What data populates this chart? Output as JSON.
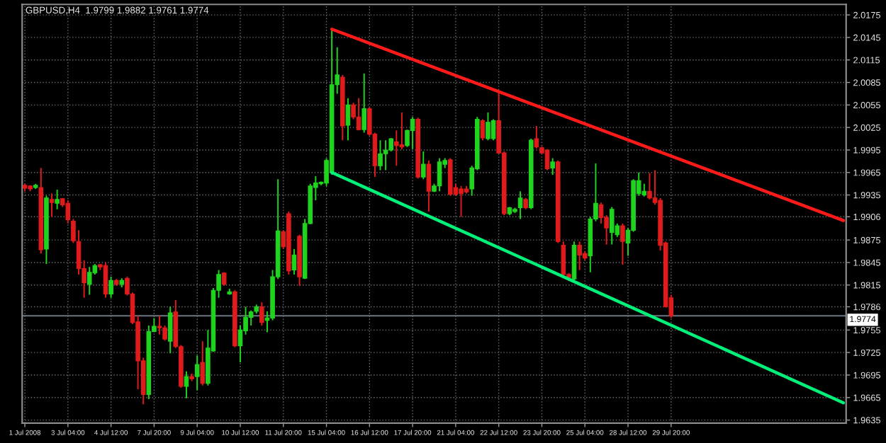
{
  "chart_data": {
    "type": "candlestick",
    "title": "GBPUSD,H4  1.9799 1.9882 1.9761 1.9774",
    "categories": [
      "1 Jul 2008",
      null,
      null,
      null,
      null,
      null,
      null,
      null,
      "3 Jul 04:00",
      null,
      null,
      null,
      null,
      null,
      null,
      null,
      "4 Jul 12:00",
      null,
      null,
      null,
      null,
      null,
      null,
      null,
      "7 Jul 20:00",
      null,
      null,
      null,
      null,
      null,
      null,
      null,
      "9 Jul 04:00",
      null,
      null,
      null,
      null,
      null,
      null,
      null,
      "10 Jul 12:00",
      null,
      null,
      null,
      null,
      null,
      null,
      null,
      "11 Jul 20:00",
      null,
      null,
      null,
      null,
      null,
      null,
      null,
      "15 Jul 04:00",
      null,
      null,
      null,
      null,
      null,
      null,
      null,
      "16 Jul 12:00",
      null,
      null,
      null,
      null,
      null,
      null,
      null,
      "17 Jul 20:00",
      null,
      null,
      null,
      null,
      null,
      null,
      null,
      "21 Jul 04:00",
      null,
      null,
      null,
      null,
      null,
      null,
      null,
      "22 Jul 12:00",
      null,
      null,
      null,
      null,
      null,
      null,
      null,
      "23 Jul 20:00",
      null,
      null,
      null,
      null,
      null,
      null,
      null,
      "25 Jul 04:00",
      null,
      null,
      null,
      null,
      null,
      null,
      null,
      "28 Jul 12:00",
      null,
      null,
      null,
      null,
      null,
      null,
      null,
      "29 Jul 20:00",
      null,
      null,
      null,
      null,
      null,
      null,
      null,
      null,
      null,
      null,
      null,
      null,
      null,
      null,
      null,
      null,
      null,
      null,
      null,
      null,
      null,
      null,
      null,
      null,
      null,
      null,
      null,
      null,
      null,
      null,
      null,
      null
    ],
    "ohlc": [
      [
        1.9948,
        1.995,
        1.994,
        1.9944
      ],
      [
        1.9947,
        1.9948,
        1.994,
        1.9943
      ],
      [
        1.9945,
        1.995,
        1.9943,
        1.9948
      ],
      [
        1.9945,
        1.9971,
        1.9857,
        1.9862
      ],
      [
        1.9863,
        1.9934,
        1.9843,
        1.9931
      ],
      [
        1.9929,
        1.9937,
        1.9906,
        1.9925
      ],
      [
        1.9924,
        1.9942,
        1.9916,
        1.9929
      ],
      [
        1.993,
        1.9931,
        1.9919,
        1.9922
      ],
      [
        1.9924,
        1.9928,
        1.9897,
        1.9902
      ],
      [
        1.99,
        1.9903,
        1.9871,
        1.9874
      ],
      [
        1.9873,
        1.9888,
        1.9829,
        1.9837
      ],
      [
        1.9837,
        1.9848,
        1.9798,
        1.9818
      ],
      [
        1.9816,
        1.9839,
        1.9802,
        1.9832
      ],
      [
        1.9831,
        1.9843,
        1.9829,
        1.9841
      ],
      [
        1.9842,
        1.9843,
        1.9835,
        1.9839
      ],
      [
        1.9841,
        1.9845,
        1.9798,
        1.9803
      ],
      [
        1.9803,
        1.9826,
        1.9798,
        1.9821
      ],
      [
        1.9821,
        1.9823,
        1.9814,
        1.9816
      ],
      [
        1.9816,
        1.9824,
        1.9812,
        1.9821
      ],
      [
        1.9824,
        1.9826,
        1.9801,
        1.9803
      ],
      [
        1.9803,
        1.9805,
        1.9763,
        1.9765
      ],
      [
        1.9766,
        1.9774,
        1.9676,
        1.9714
      ],
      [
        1.9714,
        1.9718,
        1.9656,
        1.9669
      ],
      [
        1.9669,
        1.9761,
        1.9663,
        1.9753
      ],
      [
        1.9753,
        1.9771,
        1.9752,
        1.976
      ],
      [
        1.976,
        1.9774,
        1.9749,
        1.9758
      ],
      [
        1.9758,
        1.9761,
        1.9741,
        1.9743
      ],
      [
        1.974,
        1.9786,
        1.9724,
        1.9778
      ],
      [
        1.9779,
        1.9795,
        1.9731,
        1.9733
      ],
      [
        1.9733,
        1.9735,
        1.9678,
        1.968
      ],
      [
        1.968,
        1.97,
        1.9664,
        1.9693
      ],
      [
        1.9693,
        1.9697,
        1.9687,
        1.969
      ],
      [
        1.9693,
        1.9721,
        1.9675,
        1.9709
      ],
      [
        1.9712,
        1.974,
        1.9681,
        1.9684
      ],
      [
        1.9684,
        1.9755,
        1.9681,
        1.9731
      ],
      [
        1.9727,
        1.9811,
        1.9726,
        1.9808
      ],
      [
        1.9808,
        1.9835,
        1.9798,
        1.9829
      ],
      [
        1.9831,
        1.9832,
        1.9814,
        1.9816
      ],
      [
        1.9803,
        1.981,
        1.9802,
        1.9806
      ],
      [
        1.9806,
        1.9808,
        1.9732,
        1.9734
      ],
      [
        1.9734,
        1.9761,
        1.9712,
        1.9755
      ],
      [
        1.9754,
        1.9786,
        1.9749,
        1.9772
      ],
      [
        1.9772,
        1.9781,
        1.9761,
        1.9779
      ],
      [
        1.978,
        1.9789,
        1.9777,
        1.9786
      ],
      [
        1.9786,
        1.9792,
        1.9761,
        1.9765
      ],
      [
        1.9768,
        1.978,
        1.9752,
        1.9771
      ],
      [
        1.9771,
        1.9835,
        1.9768,
        1.9826
      ],
      [
        1.9826,
        1.9956,
        1.9823,
        1.9887
      ],
      [
        1.9886,
        1.9888,
        1.9863,
        1.9866
      ],
      [
        1.991,
        1.9913,
        1.9829,
        1.9834
      ],
      [
        1.9835,
        1.9863,
        1.9829,
        1.9855
      ],
      [
        1.988,
        1.9882,
        1.9814,
        1.9826
      ],
      [
        1.9824,
        1.9903,
        1.9823,
        1.9897
      ],
      [
        1.9897,
        1.995,
        1.9896,
        1.9947
      ],
      [
        1.9945,
        1.996,
        1.9928,
        1.9951
      ],
      [
        1.995,
        1.9953,
        1.9948,
        1.9952
      ],
      [
        1.9951,
        1.9984,
        1.9947,
        1.9981
      ],
      [
        1.9965,
        2.0156,
        1.9962,
        2.0082
      ],
      [
        2.0082,
        2.0132,
        2.007,
        2.0095
      ],
      [
        2.0092,
        2.0095,
        2.0008,
        2.0027
      ],
      [
        2.0028,
        2.0064,
        2.0008,
        2.0055
      ],
      [
        2.0055,
        2.0058,
        2.0036,
        2.0039
      ],
      [
        2.0039,
        2.0064,
        2.0021,
        2.0022
      ],
      [
        2.0022,
        2.0097,
        2.0018,
        2.005
      ],
      [
        2.005,
        2.0052,
        2.0014,
        2.0016
      ],
      [
        2.0016,
        2.0018,
        1.9959,
        1.9974
      ],
      [
        1.9974,
        2.0008,
        1.9968,
        1.999
      ],
      [
        1.999,
        2.0008,
        1.9968,
        1.9995
      ],
      [
        1.9995,
        2.0011,
        1.9993,
        2.001
      ],
      [
        2.0006,
        2.0021,
        1.9974,
        2.0001
      ],
      [
        2.0002,
        2.0045,
        1.9996,
        1.9999
      ],
      [
        2.0001,
        2.0022,
        1.9999,
        2.0021
      ],
      [
        2.0021,
        2.0039,
        1.9996,
        2.0036
      ],
      [
        2.0036,
        2.0038,
        1.9957,
        1.9959
      ],
      [
        1.9959,
        1.9993,
        1.9956,
        1.9976
      ],
      [
        1.9976,
        1.9981,
        1.9913,
        1.994
      ],
      [
        1.994,
        1.995,
        1.9939,
        1.9947
      ],
      [
        1.9947,
        1.9984,
        1.994,
        1.9979
      ],
      [
        1.9976,
        1.9984,
        1.9971,
        1.9981
      ],
      [
        1.9982,
        1.9984,
        1.9934,
        1.9936
      ],
      [
        1.9945,
        1.995,
        1.9934,
        1.9936
      ],
      [
        1.9943,
        1.9947,
        1.9906,
        1.9937
      ],
      [
        1.9943,
        1.9947,
        1.9937,
        1.9939
      ],
      [
        1.9943,
        1.9974,
        1.9934,
        1.9971
      ],
      [
        1.997,
        2.0039,
        1.9968,
        2.0036
      ],
      [
        2.0034,
        2.0036,
        2.0008,
        2.0011
      ],
      [
        2.001,
        2.0045,
        2.0008,
        2.0032
      ],
      [
        2.001,
        2.0036,
        2.0008,
        2.0034
      ],
      [
        2.0034,
        2.0073,
        1.999,
        1.9991
      ],
      [
        1.9991,
        1.9993,
        1.9908,
        1.991
      ],
      [
        1.991,
        1.9919,
        1.9908,
        1.9918
      ],
      [
        1.9913,
        1.9918,
        1.9911,
        1.9916
      ],
      [
        1.9918,
        1.994,
        1.9903,
        1.9931
      ],
      [
        1.9929,
        1.9931,
        1.9916,
        1.9918
      ],
      [
        1.9918,
        2.001,
        1.9916,
        2.0008
      ],
      [
        2.001,
        2.0027,
        1.9997,
        1.9999
      ],
      [
        1.9998,
        2.0,
        1.999,
        1.9991
      ],
      [
        1.9995,
        1.9996,
        1.9968,
        1.997
      ],
      [
        1.9971,
        1.9984,
        1.9962,
        1.9979
      ],
      [
        1.9979,
        1.9981,
        1.9871,
        1.9873
      ],
      [
        1.9868,
        1.9873,
        1.9826,
        1.9829
      ],
      [
        1.9829,
        1.9831,
        1.982,
        1.9825
      ],
      [
        1.9823,
        1.9873,
        1.982,
        1.9868
      ],
      [
        1.9868,
        1.9873,
        1.9835,
        1.9855
      ],
      [
        1.9857,
        1.986,
        1.9848,
        1.9851
      ],
      [
        1.9854,
        1.9906,
        1.9832,
        1.9903
      ],
      [
        1.9903,
        1.9977,
        1.99,
        1.9924
      ],
      [
        1.9922,
        1.9925,
        1.9897,
        1.9905
      ],
      [
        1.9905,
        1.9908,
        1.9869,
        1.9891
      ],
      [
        1.9885,
        1.9919,
        1.9869,
        1.9916
      ],
      [
        1.9882,
        1.9897,
        1.9879,
        1.9894
      ],
      [
        1.9894,
        1.9897,
        1.9842,
        1.9873
      ],
      [
        1.9871,
        1.9891,
        1.9854,
        1.9888
      ],
      [
        1.9888,
        1.9956,
        1.9886,
        1.9954
      ],
      [
        1.9937,
        1.9965,
        1.9934,
        1.9954
      ],
      [
        1.9935,
        1.995,
        1.9933,
        1.994
      ],
      [
        1.994,
        1.9964,
        1.9929,
        1.9931
      ],
      [
        1.9931,
        1.9968,
        1.9922,
        1.9925
      ],
      [
        1.9928,
        1.9931,
        1.9861,
        1.9868
      ],
      [
        1.9871,
        1.9873,
        1.9785,
        1.9786
      ],
      [
        1.9798,
        1.9802,
        1.9771,
        1.9774
      ],
      null,
      null,
      null,
      null,
      null,
      null,
      null,
      null,
      null,
      null,
      null,
      null,
      null,
      null,
      null,
      null,
      null,
      null,
      null,
      null,
      null,
      null,
      null,
      null,
      null,
      null,
      null,
      null,
      null,
      null,
      null,
      null
    ],
    "colors": [
      "#e01b1b",
      "#e01b1b",
      "#1fd41f",
      "#e01b1b",
      "#1fd41f",
      "#e01b1b",
      "#1fd41f",
      "#e01b1b",
      "#e01b1b",
      "#e01b1b",
      "#e01b1b",
      "#e01b1b",
      "#1fd41f",
      "#1fd41f",
      "#e01b1b",
      "#e01b1b",
      "#1fd41f",
      "#e01b1b",
      "#1fd41f",
      "#e01b1b",
      "#e01b1b",
      "#e01b1b",
      "#e01b1b",
      "#1fd41f",
      "#1fd41f",
      "#e01b1b",
      "#e01b1b",
      "#1fd41f",
      "#e01b1b",
      "#e01b1b",
      "#1fd41f",
      "#e01b1b",
      "#1fd41f",
      "#e01b1b",
      "#1fd41f",
      "#1fd41f",
      "#1fd41f",
      "#e01b1b",
      "#1fd41f",
      "#e01b1b",
      "#1fd41f",
      "#1fd41f",
      "#1fd41f",
      "#1fd41f",
      "#e01b1b",
      "#1fd41f",
      "#1fd41f",
      "#1fd41f",
      "#e01b1b",
      "#e01b1b",
      "#1fd41f",
      "#e01b1b",
      "#1fd41f",
      "#1fd41f",
      "#1fd41f",
      "#1fd41f",
      "#1fd41f",
      "#1fd41f",
      "#1fd41f",
      "#e01b1b",
      "#1fd41f",
      "#e01b1b",
      "#e01b1b",
      "#1fd41f",
      "#e01b1b",
      "#e01b1b",
      "#1fd41f",
      "#1fd41f",
      "#1fd41f",
      "#e01b1b",
      "#e01b1b",
      "#1fd41f",
      "#1fd41f",
      "#e01b1b",
      "#1fd41f",
      "#e01b1b",
      "#1fd41f",
      "#1fd41f",
      "#1fd41f",
      "#e01b1b",
      "#e01b1b",
      "#e01b1b",
      "#e01b1b",
      "#1fd41f",
      "#1fd41f",
      "#e01b1b",
      "#1fd41f",
      "#1fd41f",
      "#e01b1b",
      "#e01b1b",
      "#1fd41f",
      "#1fd41f",
      "#1fd41f",
      "#e01b1b",
      "#1fd41f",
      "#e01b1b",
      "#e01b1b",
      "#e01b1b",
      "#1fd41f",
      "#e01b1b",
      "#e01b1b",
      "#e01b1b",
      "#1fd41f",
      "#e01b1b",
      "#e01b1b",
      "#1fd41f",
      "#1fd41f",
      "#e01b1b",
      "#e01b1b",
      "#1fd41f",
      "#1fd41f",
      "#e01b1b",
      "#1fd41f",
      "#1fd41f",
      "#1fd41f",
      "#1fd41f",
      "#e01b1b",
      "#e01b1b",
      "#e01b1b",
      "#e01b1b",
      "#e01b1b",
      null,
      null,
      null,
      null,
      null,
      null,
      null,
      null,
      null,
      null,
      null,
      null,
      null,
      null,
      null,
      null,
      null,
      null,
      null,
      null,
      null,
      null,
      null,
      null,
      null,
      null,
      null,
      null,
      null,
      null,
      null,
      null
    ],
    "series": [
      {
        "type": "line",
        "color": "#ff1a1a",
        "values": [
          null,
          null,
          null,
          null,
          null,
          null,
          null,
          null,
          null,
          null,
          null,
          null,
          null,
          null,
          null,
          null,
          null,
          null,
          null,
          null,
          null,
          null,
          null,
          null,
          null,
          null,
          null,
          null,
          null,
          null,
          null,
          null,
          null,
          null,
          null,
          null,
          null,
          null,
          null,
          null,
          null,
          null,
          null,
          null,
          null,
          null,
          null,
          null,
          null,
          null,
          null,
          null,
          null,
          null,
          null,
          null,
          null,
          2.0156,
          null,
          null,
          null,
          null,
          null,
          null,
          null,
          null,
          null,
          null,
          null,
          null,
          null,
          null,
          null,
          null,
          null,
          null,
          null,
          null,
          null,
          null,
          null,
          null,
          null,
          null,
          null,
          null,
          null,
          null,
          null,
          null,
          null,
          null,
          null,
          null,
          null,
          null,
          null,
          null,
          null,
          null,
          null,
          null,
          null,
          null,
          null,
          null,
          null,
          null,
          null,
          null,
          null,
          null,
          null,
          null,
          null,
          null,
          null,
          null,
          null,
          null,
          null,
          null,
          null,
          null,
          null,
          null,
          null,
          null,
          null,
          null,
          null,
          null,
          null,
          null,
          null,
          null,
          null,
          null,
          null,
          null,
          null,
          null,
          null,
          null,
          null,
          null,
          null,
          null,
          null,
          null,
          null,
          null,
          1.9901
        ]
      },
      {
        "type": "line",
        "color": "#00f07a",
        "values": [
          null,
          null,
          null,
          null,
          null,
          null,
          null,
          null,
          null,
          null,
          null,
          null,
          null,
          null,
          null,
          null,
          null,
          null,
          null,
          null,
          null,
          null,
          null,
          null,
          null,
          null,
          null,
          null,
          null,
          null,
          null,
          null,
          null,
          null,
          null,
          null,
          null,
          null,
          null,
          null,
          null,
          null,
          null,
          null,
          null,
          null,
          null,
          null,
          null,
          null,
          null,
          null,
          null,
          null,
          null,
          null,
          null,
          1.9965,
          null,
          null,
          null,
          null,
          null,
          null,
          null,
          null,
          null,
          null,
          null,
          null,
          null,
          null,
          null,
          null,
          null,
          null,
          null,
          null,
          null,
          null,
          null,
          null,
          null,
          null,
          null,
          null,
          null,
          null,
          null,
          null,
          null,
          null,
          null,
          null,
          null,
          null,
          null,
          null,
          null,
          null,
          null,
          null,
          null,
          null,
          null,
          null,
          null,
          null,
          null,
          null,
          null,
          null,
          null,
          null,
          null,
          null,
          null,
          null,
          null,
          null,
          null,
          null,
          null,
          null,
          null,
          null,
          null,
          null,
          null,
          null,
          null,
          null,
          null,
          null,
          null,
          null,
          null,
          null,
          null,
          null,
          null,
          null,
          null,
          null,
          null,
          null,
          null,
          null,
          null,
          null,
          null,
          null,
          1.9658
        ]
      }
    ],
    "ylim": [
      1.9631,
      2.0189
    ],
    "yticks": [
      2.0175,
      2.0145,
      2.0115,
      2.0085,
      2.0055,
      2.0025,
      1.9995,
      1.9965,
      1.9935,
      1.9906,
      1.9875,
      1.9845,
      1.9815,
      1.9786,
      1.9755,
      1.9725,
      1.9695,
      1.9665,
      1.9635
    ],
    "ref_lines": [
      {
        "axis": "y",
        "value": 1.9774,
        "label": "1.9774",
        "color": "#6a7782"
      }
    ],
    "grid": true
  }
}
